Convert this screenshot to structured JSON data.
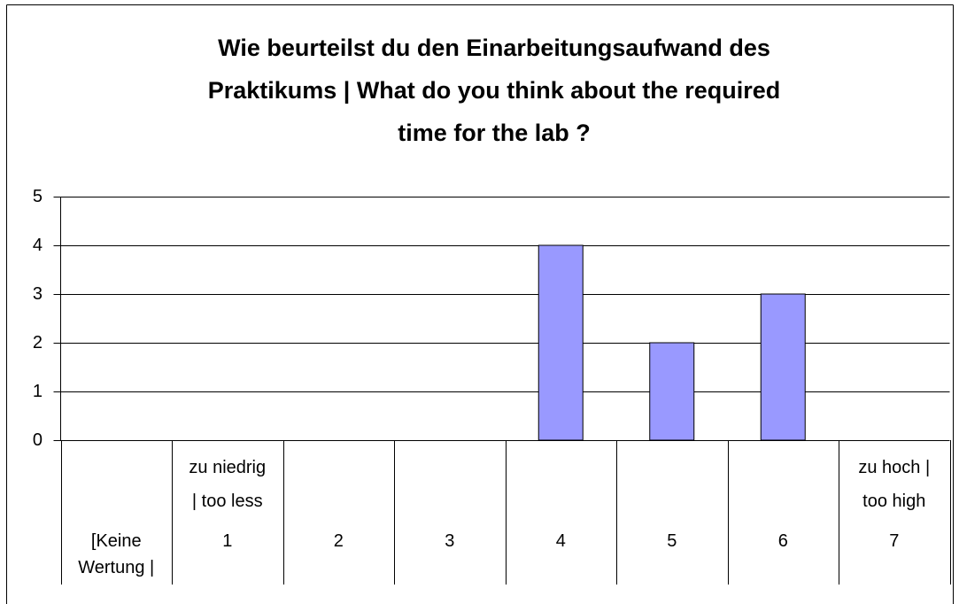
{
  "chart_data": {
    "type": "bar",
    "title": "Wie beurteilst du den Einarbeitungsaufwand des\nPraktikums | What do you think about the required\ntime for the lab ?",
    "categories": [
      "[Keine\nWertung |",
      "zu niedrig\n| too less\n1",
      "2",
      "3",
      "4",
      "5",
      "6",
      "zu hoch |\ntoo high\n7"
    ],
    "values": [
      0,
      0,
      0,
      0,
      4,
      2,
      3,
      0
    ],
    "color": "#9999ff",
    "ylim": [
      0,
      5
    ],
    "yticks": [
      0,
      1,
      2,
      3,
      4,
      5
    ],
    "grid": true
  }
}
